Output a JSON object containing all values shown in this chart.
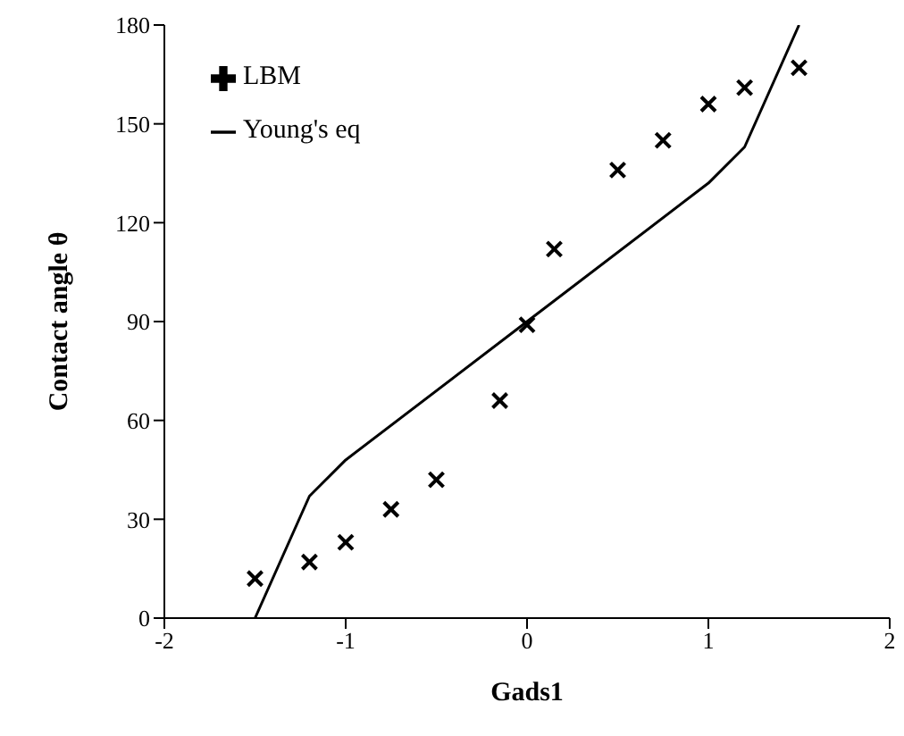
{
  "chart_data": {
    "type": "scatter",
    "xlabel": "Gads1",
    "ylabel": "Contact angle θ",
    "xlim": [
      -2,
      2
    ],
    "xticks": [
      -2,
      -1,
      0,
      1,
      2
    ],
    "ylim": [
      0,
      180
    ],
    "yticks": [
      0,
      30,
      60,
      90,
      120,
      150,
      180
    ],
    "grid": false,
    "legend": "top left",
    "series": [
      {
        "name": "LBM",
        "color": "#000000",
        "marker": "cross",
        "x": [
          -1.5,
          -1.2,
          -1,
          -0.75,
          -0.5,
          -0.15,
          0,
          0.15,
          0.5,
          0.75,
          1,
          1.2,
          1.5
        ],
        "values": [
          12,
          17,
          23,
          33,
          42,
          66,
          89,
          112,
          136,
          145,
          156,
          161,
          167
        ]
      },
      {
        "name": "Young's eq",
        "type": "line",
        "color": "#000000",
        "marker": "none",
        "line_style": "solid",
        "x": [
          -1.5,
          -1.2,
          -1,
          0,
          1,
          1.2,
          1.5
        ],
        "values": [
          0,
          37,
          48,
          90,
          132,
          143,
          180
        ]
      }
    ]
  }
}
